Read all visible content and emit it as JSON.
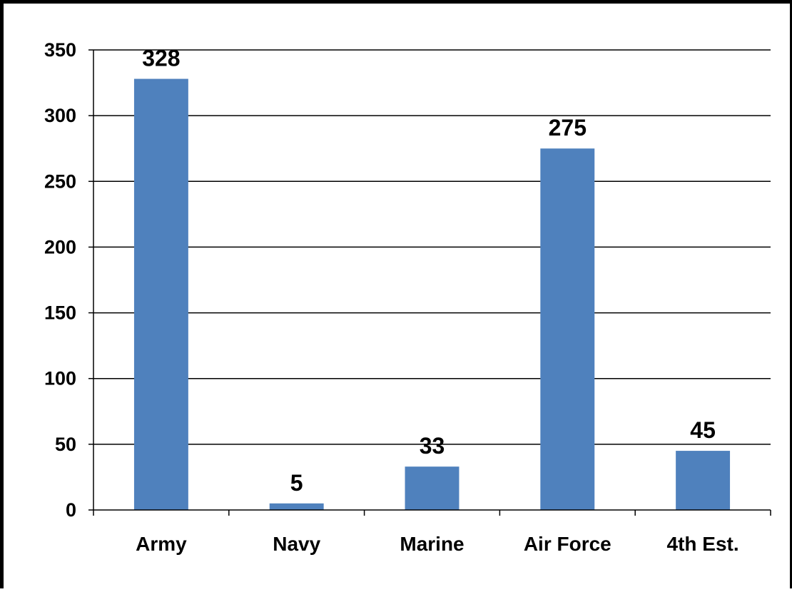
{
  "chart_data": {
    "type": "bar",
    "title": "",
    "xlabel": "",
    "ylabel": "",
    "categories": [
      "Army",
      "Navy",
      "Marine",
      "Air Force",
      "4th Est."
    ],
    "values": [
      328,
      5,
      33,
      275,
      45
    ],
    "data_labels": [
      "328",
      "5",
      "33",
      "275",
      "45"
    ],
    "ylim": [
      0,
      350
    ],
    "yticks": [
      0,
      50,
      100,
      150,
      200,
      250,
      300,
      350
    ],
    "ytick_labels": [
      "0",
      "50",
      "100",
      "150",
      "200",
      "250",
      "300",
      "350"
    ],
    "grid": true,
    "legend": "none",
    "bar_color": "#4F81BD"
  }
}
